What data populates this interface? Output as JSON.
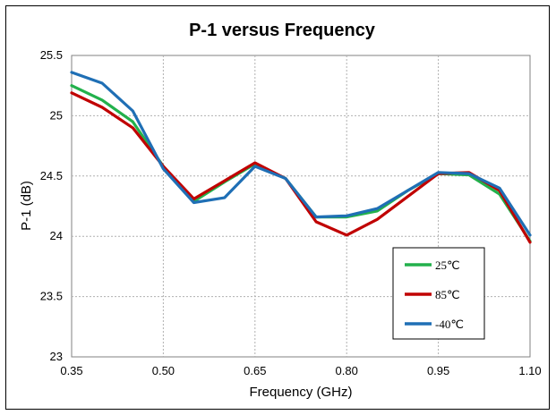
{
  "chart_data": {
    "type": "line",
    "title": "P-1 versus Frequency",
    "xlabel": "Frequency (GHz)",
    "ylabel": "P-1 (dB)",
    "xlim": [
      0.35,
      1.1
    ],
    "ylim": [
      23,
      25.5
    ],
    "x_ticks": [
      "0.35",
      "0.50",
      "0.65",
      "0.80",
      "0.95",
      "1.10"
    ],
    "y_ticks": [
      "23",
      "23.5",
      "24",
      "24.5",
      "25",
      "25.5"
    ],
    "x": [
      0.35,
      0.4,
      0.45,
      0.5,
      0.55,
      0.6,
      0.65,
      0.7,
      0.75,
      0.8,
      0.85,
      0.9,
      0.95,
      1.0,
      1.05,
      1.1
    ],
    "grid": true,
    "legend_position": "lower-right",
    "series": [
      {
        "name": "25℃",
        "color": "#22b14c",
        "values": [
          25.25,
          25.13,
          24.95,
          24.58,
          24.29,
          24.45,
          24.6,
          24.48,
          24.16,
          24.16,
          24.21,
          24.38,
          24.52,
          24.51,
          24.35,
          23.96
        ]
      },
      {
        "name": "85℃",
        "color": "#c00000",
        "values": [
          25.19,
          25.07,
          24.9,
          24.58,
          24.31,
          24.46,
          24.61,
          24.48,
          24.12,
          24.01,
          24.14,
          24.33,
          24.52,
          24.53,
          24.38,
          23.95
        ]
      },
      {
        "name": "-40℃",
        "color": "#1f6fb5",
        "values": [
          25.36,
          25.27,
          25.04,
          24.56,
          24.28,
          24.32,
          24.58,
          24.48,
          24.16,
          24.17,
          24.23,
          24.38,
          24.53,
          24.52,
          24.4,
          24.01
        ]
      }
    ]
  }
}
